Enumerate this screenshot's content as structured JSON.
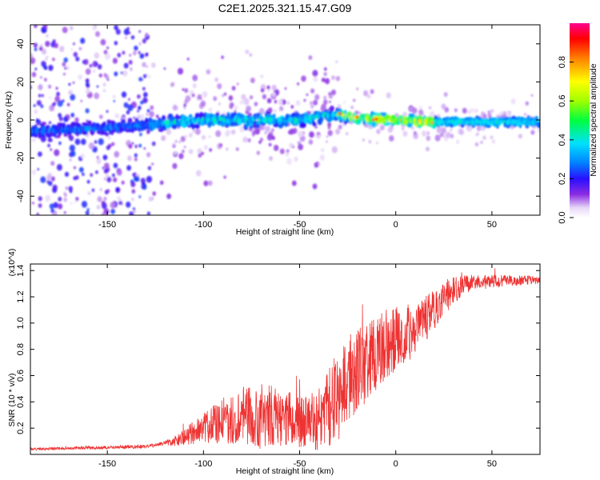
{
  "title": "C2E1.2025.321.15.47.G09",
  "chart_data": [
    {
      "type": "heatmap",
      "title": "C2E1.2025.321.15.47.G09",
      "xlabel": "Height of straight line (km)",
      "ylabel": "Frequency (Hz)",
      "xlim": [
        -190,
        75
      ],
      "ylim": [
        -50,
        50
      ],
      "x_ticks": [
        "-150",
        "-100",
        "-50",
        "0",
        "50"
      ],
      "y_ticks": [
        "40",
        "20",
        "0",
        "-20",
        "-40"
      ],
      "colorbar": {
        "label": "Normalized spectral amplitude",
        "range": [
          0,
          1
        ],
        "ticks": [
          "0.0",
          "0.2",
          "0.4",
          "0.6",
          "0.8"
        ]
      },
      "ridge_center_hz": [
        {
          "x": -190,
          "y": -6
        },
        {
          "x": -150,
          "y": -4
        },
        {
          "x": -120,
          "y": -2
        },
        {
          "x": -100,
          "y": 0
        },
        {
          "x": -75,
          "y": 0
        },
        {
          "x": -50,
          "y": 0
        },
        {
          "x": -30,
          "y": 3
        },
        {
          "x": -20,
          "y": 1
        },
        {
          "x": 0,
          "y": 0
        },
        {
          "x": 20,
          "y": -1
        },
        {
          "x": 75,
          "y": -1
        }
      ]
    },
    {
      "type": "line",
      "xlabel": "Height of straight line (km)",
      "ylabel": "SNR (10 * v/v)",
      "y_multiplier": "(x10^4)",
      "xlim": [
        -190,
        75
      ],
      "ylim": [
        0,
        1.45
      ],
      "x_ticks": [
        "-150",
        "-100",
        "-50",
        "0",
        "50"
      ],
      "y_ticks": [
        "0.2",
        "0.4",
        "0.6",
        "0.8",
        "1.0",
        "1.2",
        "1.4"
      ],
      "color": "#ee3333",
      "series_trend": [
        {
          "x": -190,
          "y": 0.04
        },
        {
          "x": -160,
          "y": 0.05
        },
        {
          "x": -130,
          "y": 0.06
        },
        {
          "x": -115,
          "y": 0.1
        },
        {
          "x": -100,
          "y": 0.2
        },
        {
          "x": -80,
          "y": 0.3
        },
        {
          "x": -60,
          "y": 0.28
        },
        {
          "x": -40,
          "y": 0.25
        },
        {
          "x": -30,
          "y": 0.45
        },
        {
          "x": -20,
          "y": 0.65
        },
        {
          "x": -5,
          "y": 0.85
        },
        {
          "x": 10,
          "y": 0.95
        },
        {
          "x": 20,
          "y": 1.1
        },
        {
          "x": 30,
          "y": 1.25
        },
        {
          "x": 40,
          "y": 1.31
        },
        {
          "x": 75,
          "y": 1.33
        }
      ],
      "noise_envelope": [
        {
          "x": -190,
          "a": 0.01
        },
        {
          "x": -120,
          "a": 0.015
        },
        {
          "x": -110,
          "a": 0.06
        },
        {
          "x": -90,
          "a": 0.18
        },
        {
          "x": -70,
          "a": 0.25
        },
        {
          "x": -45,
          "a": 0.2
        },
        {
          "x": -30,
          "a": 0.35
        },
        {
          "x": -10,
          "a": 0.3
        },
        {
          "x": 20,
          "a": 0.15
        },
        {
          "x": 40,
          "a": 0.06
        },
        {
          "x": 75,
          "a": 0.03
        }
      ]
    }
  ]
}
